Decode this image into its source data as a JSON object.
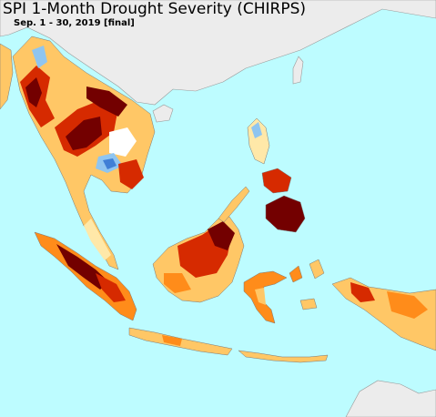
{
  "map": {
    "title": "SPI 1-Month Drought Severity (CHIRPS)",
    "subtitle": "Sep. 1 - 30, 2019 [final]",
    "colors": {
      "ocean": "#bdfcff",
      "no_data_land": "#ececec",
      "extreme_drought": "#730000",
      "severe_drought": "#d62a00",
      "moderate_drought": "#ff8c1a",
      "abnormally_dry": "#ffc766",
      "near_normal_dry": "#ffe8a8",
      "wet": "#8fc5f0",
      "very_wet": "#3f7fd6"
    }
  }
}
